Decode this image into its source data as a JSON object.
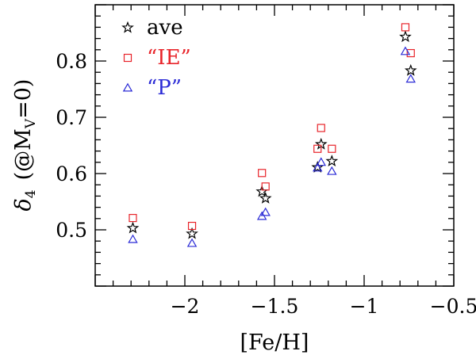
{
  "chart_data": {
    "type": "scatter",
    "xlabel": "[Fe/H]",
    "ylabel_main": "δ",
    "ylabel_sub": "4",
    "ylabel_rest": "(@M",
    "ylabel_sub2": "V",
    "ylabel_end": "=0)",
    "xlim": [
      -2.5,
      -0.5
    ],
    "ylim": [
      0.4,
      0.9
    ],
    "xticks": [
      -2,
      -1.5,
      -1,
      -0.5
    ],
    "xtick_labels": [
      "−2",
      "−1.5",
      "−1",
      "−0.5"
    ],
    "yticks": [
      0.5,
      0.6,
      0.7,
      0.8
    ],
    "ytick_labels": [
      "0.5",
      "0.6",
      "0.7",
      "0.8"
    ],
    "legend_position": "top-left",
    "series": [
      {
        "name": "ave",
        "marker": "star",
        "color": "#000000",
        "points": [
          {
            "x": -2.29,
            "y": 0.503
          },
          {
            "x": -1.96,
            "y": 0.493
          },
          {
            "x": -1.57,
            "y": 0.568
          },
          {
            "x": -1.55,
            "y": 0.556
          },
          {
            "x": -1.26,
            "y": 0.611
          },
          {
            "x": -1.24,
            "y": 0.652
          },
          {
            "x": -1.18,
            "y": 0.622
          },
          {
            "x": -0.77,
            "y": 0.843
          },
          {
            "x": -0.74,
            "y": 0.783
          }
        ]
      },
      {
        "name": "“IE”",
        "marker": "square",
        "color": "#e8242a",
        "points": [
          {
            "x": -2.29,
            "y": 0.521
          },
          {
            "x": -1.96,
            "y": 0.507
          },
          {
            "x": -1.57,
            "y": 0.601
          },
          {
            "x": -1.55,
            "y": 0.577
          },
          {
            "x": -1.26,
            "y": 0.644
          },
          {
            "x": -1.24,
            "y": 0.681
          },
          {
            "x": -1.18,
            "y": 0.644
          },
          {
            "x": -0.77,
            "y": 0.86
          },
          {
            "x": -0.74,
            "y": 0.814
          }
        ]
      },
      {
        "name": "“P”",
        "marker": "triangle",
        "color": "#2b2bd6",
        "points": [
          {
            "x": -2.29,
            "y": 0.483
          },
          {
            "x": -1.96,
            "y": 0.476
          },
          {
            "x": -1.57,
            "y": 0.524
          },
          {
            "x": -1.55,
            "y": 0.531
          },
          {
            "x": -1.26,
            "y": 0.61
          },
          {
            "x": -1.24,
            "y": 0.62
          },
          {
            "x": -1.18,
            "y": 0.604
          },
          {
            "x": -0.77,
            "y": 0.817
          },
          {
            "x": -0.74,
            "y": 0.768
          }
        ]
      }
    ]
  }
}
